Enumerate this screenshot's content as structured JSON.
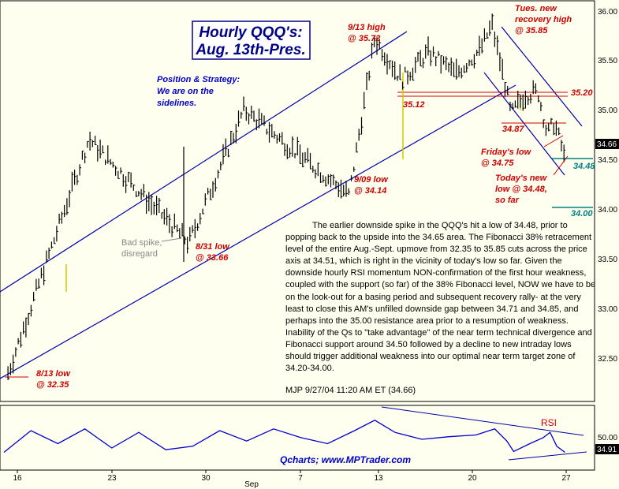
{
  "chart_data": [
    {
      "type": "candlestick",
      "title": "Hourly QQQ's:",
      "subtitle": "Aug. 13th-Pres.",
      "x_tick_labels": [
        "16",
        "23",
        "30",
        "Sep",
        "7",
        "13",
        "20",
        "27"
      ],
      "y_tick_labels": [
        "36.00",
        "35.50",
        "35.00",
        "34.50",
        "34.00",
        "33.50",
        "33.00",
        "32.50"
      ],
      "ylim": [
        32.1,
        36.05
      ],
      "last_price": "34.66",
      "grid": false,
      "key_points": [
        {
          "day": 0.3,
          "price": 32.35
        },
        {
          "day": 6.3,
          "price": 34.7
        },
        {
          "day": 13.7,
          "price": 33.66
        },
        {
          "day": 17.8,
          "price": 35.0
        },
        {
          "day": 25.6,
          "price": 34.14
        },
        {
          "day": 27.5,
          "price": 35.72
        },
        {
          "day": 29.5,
          "price": 35.3
        },
        {
          "day": 31.5,
          "price": 35.58
        },
        {
          "day": 33.5,
          "price": 35.36
        },
        {
          "day": 35.3,
          "price": 35.6
        },
        {
          "day": 36.2,
          "price": 35.85
        },
        {
          "day": 37.1,
          "price": 35.3
        },
        {
          "day": 37.6,
          "price": 34.95
        },
        {
          "day": 38.6,
          "price": 35.15
        },
        {
          "day": 39.6,
          "price": 35.18
        },
        {
          "day": 40.3,
          "price": 34.75
        },
        {
          "day": 40.8,
          "price": 34.87
        },
        {
          "day": 41.3,
          "price": 34.66
        },
        {
          "day": 41.6,
          "price": 34.48
        }
      ]
    },
    {
      "type": "line",
      "label": "RSI",
      "y_tick_labels": [
        "50.00"
      ],
      "last_value": "34.91",
      "points": [
        {
          "day": 0,
          "value": 35
        },
        {
          "day": 2,
          "value": 60
        },
        {
          "day": 4,
          "value": 45
        },
        {
          "day": 6,
          "value": 62
        },
        {
          "day": 8,
          "value": 40
        },
        {
          "day": 10,
          "value": 58
        },
        {
          "day": 12,
          "value": 38
        },
        {
          "day": 14,
          "value": 42
        },
        {
          "day": 16,
          "value": 60
        },
        {
          "day": 18,
          "value": 48
        },
        {
          "day": 20,
          "value": 62
        },
        {
          "day": 22,
          "value": 52
        },
        {
          "day": 24,
          "value": 45
        },
        {
          "day": 26,
          "value": 60
        },
        {
          "day": 27.5,
          "value": 72
        },
        {
          "day": 29,
          "value": 58
        },
        {
          "day": 31,
          "value": 50
        },
        {
          "day": 33,
          "value": 53
        },
        {
          "day": 35,
          "value": 55
        },
        {
          "day": 36.4,
          "value": 62
        },
        {
          "day": 37.3,
          "value": 48
        },
        {
          "day": 37.8,
          "value": 36
        },
        {
          "day": 39,
          "value": 45
        },
        {
          "day": 40,
          "value": 52
        },
        {
          "day": 40.5,
          "value": 58
        },
        {
          "day": 41,
          "value": 42
        },
        {
          "day": 41.6,
          "value": 35
        }
      ]
    }
  ],
  "annotations": {
    "position_strategy": [
      "Position & Strategy:",
      "We are on the",
      "sidelines."
    ],
    "sep13_high": [
      "9/13 high",
      "@ 35.72"
    ],
    "tues_high": [
      "Tues. new",
      "recovery high",
      "@ 35.85"
    ],
    "level_3520": "35.20",
    "level_3512": "35.12",
    "level_3487": "34.87",
    "friday_low": [
      "Friday's low",
      "@ 34.75"
    ],
    "today_low": [
      "Today's new",
      "low @ 34.48,",
      "so far"
    ],
    "level_3448": "34.48",
    "level_3400": "34.00",
    "sep09_low": [
      "9/09 low",
      "@ 34.14"
    ],
    "aug31_low": [
      "8/31 low",
      "@ 33.66"
    ],
    "bad_spike": [
      "Bad spike,",
      "disregard"
    ],
    "aug13_low": [
      "8/13 low",
      "@ 32.35"
    ],
    "rsi_label": "RSI",
    "watermark": "Qcharts; www.MPTrader.com"
  },
  "colors": {
    "background": "#fffff0",
    "channel": "#0000aa",
    "bars": "#000000",
    "rsi": "#0000cc",
    "annotation_red": "#cc0000",
    "annotation_blue": "#0000cc",
    "annotation_teal": "#008080",
    "resistance_lines": "#cc0000",
    "volume_spike": "#cccc00"
  },
  "commentary": "The earlier downside spike in the QQQ's hit a low of 34.48, prior to popping back to the upside into the 34.65 area. The Fibonacci 38% retracement level of the entire Aug.-Sept. upmove from 32.35 to 35.85 cuts across the price axis at 34.51, which is right in the vicinity of today's low so far. Given the downside hourly RSI momentum NON-confirmation of the first hour weakness, coupled with the support (so far) of the 38% Fibonacci level, NOW we have to be on the look-out for a basing period and subsequent recovery rally- at the very least to close this AM's unfilled downside gap between 34.71 and 34.85, and perhaps into the 35.00 resistance area prior to a resumption of weakness. Inability of the Qs to \"take advantage\" of the near term technical divergence and Fibonacci support around 34.50 followed by a decline to new intraday lows should trigger additional weakness into our optimal near term target zone of 34.20-34.00.",
  "signature": "MJP 9/27/04  11:20 AM ET  (34.66)"
}
